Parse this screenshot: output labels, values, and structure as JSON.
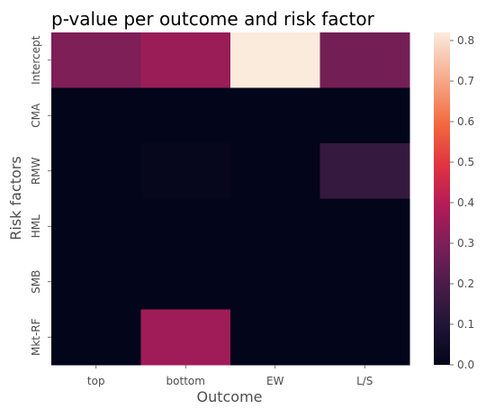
{
  "chart_data": {
    "type": "heatmap",
    "title": "p-value per outcome and risk factor",
    "xlabel": "Outcome",
    "ylabel": "Risk factors",
    "x_categories": [
      "top",
      "bottom",
      "EW",
      "L/S"
    ],
    "y_categories": [
      "Intercept",
      "CMA",
      "RMW",
      "HML",
      "SMB",
      "Mkt-RF"
    ],
    "values": [
      [
        0.3,
        0.35,
        0.82,
        0.28
      ],
      [
        0.0,
        0.0,
        0.0,
        0.0
      ],
      [
        0.0,
        0.01,
        0.0,
        0.15
      ],
      [
        0.0,
        0.0,
        0.0,
        0.0
      ],
      [
        0.0,
        0.0,
        0.0,
        0.0
      ],
      [
        0.0,
        0.36,
        0.0,
        0.0
      ]
    ],
    "vmin": 0.0,
    "vmax": 0.82,
    "colormap": "rocket",
    "colorbar_ticks": [
      0.0,
      0.1,
      0.2,
      0.3,
      0.4,
      0.5,
      0.6,
      0.7,
      0.8
    ],
    "colorbar_tick_labels": [
      "0.0",
      "0.1",
      "0.2",
      "0.3",
      "0.4",
      "0.5",
      "0.6",
      "0.7",
      "0.8"
    ]
  }
}
